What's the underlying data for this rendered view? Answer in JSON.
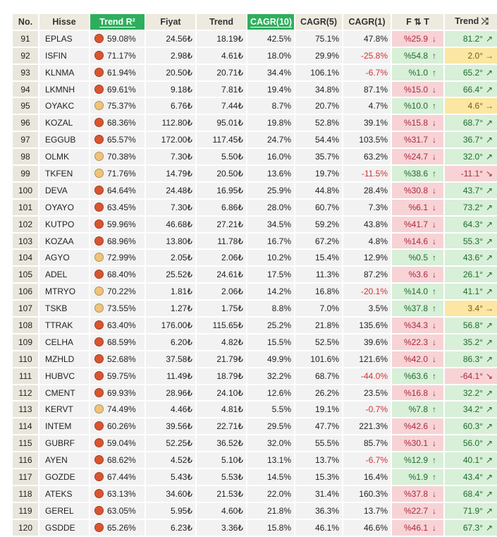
{
  "headers": {
    "no": "No.",
    "hisse": "Hisse",
    "trend_r2": "Trend R²",
    "fiyat": "Fiyat",
    "trend": "Trend",
    "cagr10": "CAGR(10)",
    "cagr5": "CAGR(5)",
    "cagr1": "CAGR(1)",
    "ft": "F ⇅ T",
    "trend_dir": "Trend ⤮"
  },
  "colors": {
    "header_bg": "#eeeadf",
    "highlight_header": "#2eae5c",
    "dot_red": "#d9552f",
    "dot_yellow": "#efc37a",
    "cell_green": "#d8efd8",
    "cell_pink": "#f7d3d6",
    "cell_yellow": "#fbe6a3",
    "negative_text": "#d43030"
  },
  "rows": [
    {
      "no": "91",
      "hisse": "EPLAS",
      "dot": "red",
      "r2": "59.08%",
      "fiyat": "24.56₺",
      "trend": "18.19₺",
      "cagr10": "42.5%",
      "cagr5": "75.1%",
      "cagr1": "47.8%",
      "cagr1_neg": false,
      "ft": "%25.9",
      "ft_arrow": "↓",
      "ft_color": "pink",
      "td": "81.2°",
      "td_arrow": "↗",
      "td_color": "green"
    },
    {
      "no": "92",
      "hisse": "ISFIN",
      "dot": "red",
      "r2": "71.17%",
      "fiyat": "2.98₺",
      "trend": "4.61₺",
      "cagr10": "18.0%",
      "cagr5": "29.9%",
      "cagr1": "-25.8%",
      "cagr1_neg": true,
      "ft": "%54.8",
      "ft_arrow": "↑",
      "ft_color": "green",
      "td": "2.0°",
      "td_arrow": "→",
      "td_color": "yel"
    },
    {
      "no": "93",
      "hisse": "KLNMA",
      "dot": "red",
      "r2": "61.94%",
      "fiyat": "20.50₺",
      "trend": "20.71₺",
      "cagr10": "34.4%",
      "cagr5": "106.1%",
      "cagr1": "-6.7%",
      "cagr1_neg": true,
      "ft": "%1.0",
      "ft_arrow": "↑",
      "ft_color": "green",
      "td": "65.2°",
      "td_arrow": "↗",
      "td_color": "green"
    },
    {
      "no": "94",
      "hisse": "LKMNH",
      "dot": "red",
      "r2": "69.61%",
      "fiyat": "9.18₺",
      "trend": "7.81₺",
      "cagr10": "19.4%",
      "cagr5": "34.8%",
      "cagr1": "87.1%",
      "cagr1_neg": false,
      "ft": "%15.0",
      "ft_arrow": "↓",
      "ft_color": "pink",
      "td": "66.4°",
      "td_arrow": "↗",
      "td_color": "green"
    },
    {
      "no": "95",
      "hisse": "OYAKC",
      "dot": "yellow",
      "r2": "75.37%",
      "fiyat": "6.76₺",
      "trend": "7.44₺",
      "cagr10": "8.7%",
      "cagr5": "20.7%",
      "cagr1": "4.7%",
      "cagr1_neg": false,
      "ft": "%10.0",
      "ft_arrow": "↑",
      "ft_color": "green",
      "td": "4.6°",
      "td_arrow": "→",
      "td_color": "yel"
    },
    {
      "no": "96",
      "hisse": "KOZAL",
      "dot": "red",
      "r2": "68.36%",
      "fiyat": "112.80₺",
      "trend": "95.01₺",
      "cagr10": "19.8%",
      "cagr5": "52.8%",
      "cagr1": "39.1%",
      "cagr1_neg": false,
      "ft": "%15.8",
      "ft_arrow": "↓",
      "ft_color": "pink",
      "td": "68.7°",
      "td_arrow": "↗",
      "td_color": "green"
    },
    {
      "no": "97",
      "hisse": "EGGUB",
      "dot": "red",
      "r2": "65.57%",
      "fiyat": "172.00₺",
      "trend": "117.45₺",
      "cagr10": "24.7%",
      "cagr5": "54.4%",
      "cagr1": "103.5%",
      "cagr1_neg": false,
      "ft": "%31.7",
      "ft_arrow": "↓",
      "ft_color": "pink",
      "td": "36.7°",
      "td_arrow": "↗",
      "td_color": "green"
    },
    {
      "no": "98",
      "hisse": "OLMK",
      "dot": "yellow",
      "r2": "70.38%",
      "fiyat": "7.30₺",
      "trend": "5.50₺",
      "cagr10": "16.0%",
      "cagr5": "35.7%",
      "cagr1": "63.2%",
      "cagr1_neg": false,
      "ft": "%24.7",
      "ft_arrow": "↓",
      "ft_color": "pink",
      "td": "32.0°",
      "td_arrow": "↗",
      "td_color": "green"
    },
    {
      "no": "99",
      "hisse": "TKFEN",
      "dot": "yellow",
      "r2": "71.76%",
      "fiyat": "14.79₺",
      "trend": "20.50₺",
      "cagr10": "13.6%",
      "cagr5": "19.7%",
      "cagr1": "-11.5%",
      "cagr1_neg": true,
      "ft": "%38.6",
      "ft_arrow": "↑",
      "ft_color": "green",
      "td": "-11.1°",
      "td_arrow": "↘",
      "td_color": "pink"
    },
    {
      "no": "100",
      "hisse": "DEVA",
      "dot": "red",
      "r2": "64.64%",
      "fiyat": "24.48₺",
      "trend": "16.95₺",
      "cagr10": "25.9%",
      "cagr5": "44.8%",
      "cagr1": "28.4%",
      "cagr1_neg": false,
      "ft": "%30.8",
      "ft_arrow": "↓",
      "ft_color": "pink",
      "td": "43.7°",
      "td_arrow": "↗",
      "td_color": "green"
    },
    {
      "no": "101",
      "hisse": "OYAYO",
      "dot": "red",
      "r2": "63.45%",
      "fiyat": "7.30₺",
      "trend": "6.86₺",
      "cagr10": "28.0%",
      "cagr5": "60.7%",
      "cagr1": "7.3%",
      "cagr1_neg": false,
      "ft": "%6.1",
      "ft_arrow": "↓",
      "ft_color": "pink",
      "td": "73.2°",
      "td_arrow": "↗",
      "td_color": "green"
    },
    {
      "no": "102",
      "hisse": "KUTPO",
      "dot": "red",
      "r2": "59.96%",
      "fiyat": "46.68₺",
      "trend": "27.21₺",
      "cagr10": "34.5%",
      "cagr5": "59.2%",
      "cagr1": "43.8%",
      "cagr1_neg": false,
      "ft": "%41.7",
      "ft_arrow": "↓",
      "ft_color": "pink",
      "td": "64.3°",
      "td_arrow": "↗",
      "td_color": "green"
    },
    {
      "no": "103",
      "hisse": "KOZAA",
      "dot": "red",
      "r2": "68.96%",
      "fiyat": "13.80₺",
      "trend": "11.78₺",
      "cagr10": "16.7%",
      "cagr5": "67.2%",
      "cagr1": "4.8%",
      "cagr1_neg": false,
      "ft": "%14.6",
      "ft_arrow": "↓",
      "ft_color": "pink",
      "td": "55.3°",
      "td_arrow": "↗",
      "td_color": "green"
    },
    {
      "no": "104",
      "hisse": "AGYO",
      "dot": "yellow",
      "r2": "72.99%",
      "fiyat": "2.05₺",
      "trend": "2.06₺",
      "cagr10": "10.2%",
      "cagr5": "15.4%",
      "cagr1": "12.9%",
      "cagr1_neg": false,
      "ft": "%0.5",
      "ft_arrow": "↑",
      "ft_color": "green",
      "td": "43.6°",
      "td_arrow": "↗",
      "td_color": "green"
    },
    {
      "no": "105",
      "hisse": "ADEL",
      "dot": "red",
      "r2": "68.40%",
      "fiyat": "25.52₺",
      "trend": "24.61₺",
      "cagr10": "17.5%",
      "cagr5": "11.3%",
      "cagr1": "87.2%",
      "cagr1_neg": false,
      "ft": "%3.6",
      "ft_arrow": "↓",
      "ft_color": "pink",
      "td": "26.1°",
      "td_arrow": "↗",
      "td_color": "green"
    },
    {
      "no": "106",
      "hisse": "MTRYO",
      "dot": "yellow",
      "r2": "70.22%",
      "fiyat": "1.81₺",
      "trend": "2.06₺",
      "cagr10": "14.2%",
      "cagr5": "16.8%",
      "cagr1": "-20.1%",
      "cagr1_neg": true,
      "ft": "%14.0",
      "ft_arrow": "↑",
      "ft_color": "green",
      "td": "41.1°",
      "td_arrow": "↗",
      "td_color": "green"
    },
    {
      "no": "107",
      "hisse": "TSKB",
      "dot": "yellow",
      "r2": "73.55%",
      "fiyat": "1.27₺",
      "trend": "1.75₺",
      "cagr10": "8.8%",
      "cagr5": "7.0%",
      "cagr1": "3.5%",
      "cagr1_neg": false,
      "ft": "%37.8",
      "ft_arrow": "↑",
      "ft_color": "green",
      "td": "3.4°",
      "td_arrow": "→",
      "td_color": "yel"
    },
    {
      "no": "108",
      "hisse": "TTRAK",
      "dot": "red",
      "r2": "63.40%",
      "fiyat": "176.00₺",
      "trend": "115.65₺",
      "cagr10": "25.2%",
      "cagr5": "21.8%",
      "cagr1": "135.6%",
      "cagr1_neg": false,
      "ft": "%34.3",
      "ft_arrow": "↓",
      "ft_color": "pink",
      "td": "56.8°",
      "td_arrow": "↗",
      "td_color": "green"
    },
    {
      "no": "109",
      "hisse": "CELHA",
      "dot": "red",
      "r2": "68.59%",
      "fiyat": "6.20₺",
      "trend": "4.82₺",
      "cagr10": "15.5%",
      "cagr5": "52.5%",
      "cagr1": "39.6%",
      "cagr1_neg": false,
      "ft": "%22.3",
      "ft_arrow": "↓",
      "ft_color": "pink",
      "td": "35.2°",
      "td_arrow": "↗",
      "td_color": "green"
    },
    {
      "no": "110",
      "hisse": "MZHLD",
      "dot": "red",
      "r2": "52.68%",
      "fiyat": "37.58₺",
      "trend": "21.79₺",
      "cagr10": "49.9%",
      "cagr5": "101.6%",
      "cagr1": "121.6%",
      "cagr1_neg": false,
      "ft": "%42.0",
      "ft_arrow": "↓",
      "ft_color": "pink",
      "td": "86.3°",
      "td_arrow": "↗",
      "td_color": "green"
    },
    {
      "no": "111",
      "hisse": "HUBVC",
      "dot": "red",
      "r2": "59.75%",
      "fiyat": "11.49₺",
      "trend": "18.79₺",
      "cagr10": "32.2%",
      "cagr5": "68.7%",
      "cagr1": "-44.0%",
      "cagr1_neg": true,
      "ft": "%63.6",
      "ft_arrow": "↑",
      "ft_color": "green",
      "td": "-64.1°",
      "td_arrow": "↘",
      "td_color": "pink"
    },
    {
      "no": "112",
      "hisse": "CMENT",
      "dot": "red",
      "r2": "69.93%",
      "fiyat": "28.96₺",
      "trend": "24.10₺",
      "cagr10": "12.6%",
      "cagr5": "26.2%",
      "cagr1": "23.5%",
      "cagr1_neg": false,
      "ft": "%16.8",
      "ft_arrow": "↓",
      "ft_color": "pink",
      "td": "32.2°",
      "td_arrow": "↗",
      "td_color": "green"
    },
    {
      "no": "113",
      "hisse": "KERVT",
      "dot": "yellow",
      "r2": "74.49%",
      "fiyat": "4.46₺",
      "trend": "4.81₺",
      "cagr10": "5.5%",
      "cagr5": "19.1%",
      "cagr1": "-0.7%",
      "cagr1_neg": true,
      "ft": "%7.8",
      "ft_arrow": "↑",
      "ft_color": "green",
      "td": "34.2°",
      "td_arrow": "↗",
      "td_color": "green"
    },
    {
      "no": "114",
      "hisse": "INTEM",
      "dot": "red",
      "r2": "60.26%",
      "fiyat": "39.56₺",
      "trend": "22.71₺",
      "cagr10": "29.5%",
      "cagr5": "47.7%",
      "cagr1": "221.3%",
      "cagr1_neg": false,
      "ft": "%42.6",
      "ft_arrow": "↓",
      "ft_color": "pink",
      "td": "60.3°",
      "td_arrow": "↗",
      "td_color": "green"
    },
    {
      "no": "115",
      "hisse": "GUBRF",
      "dot": "red",
      "r2": "59.04%",
      "fiyat": "52.25₺",
      "trend": "36.52₺",
      "cagr10": "32.0%",
      "cagr5": "55.5%",
      "cagr1": "85.7%",
      "cagr1_neg": false,
      "ft": "%30.1",
      "ft_arrow": "↓",
      "ft_color": "pink",
      "td": "56.0°",
      "td_arrow": "↗",
      "td_color": "green"
    },
    {
      "no": "116",
      "hisse": "AYEN",
      "dot": "red",
      "r2": "68.62%",
      "fiyat": "4.52₺",
      "trend": "5.10₺",
      "cagr10": "13.1%",
      "cagr5": "13.7%",
      "cagr1": "-6.7%",
      "cagr1_neg": true,
      "ft": "%12.9",
      "ft_arrow": "↑",
      "ft_color": "green",
      "td": "40.1°",
      "td_arrow": "↗",
      "td_color": "green"
    },
    {
      "no": "117",
      "hisse": "GOZDE",
      "dot": "red",
      "r2": "67.44%",
      "fiyat": "5.43₺",
      "trend": "5.53₺",
      "cagr10": "14.5%",
      "cagr5": "15.3%",
      "cagr1": "16.4%",
      "cagr1_neg": false,
      "ft": "%1.9",
      "ft_arrow": "↑",
      "ft_color": "green",
      "td": "43.4°",
      "td_arrow": "↗",
      "td_color": "green"
    },
    {
      "no": "118",
      "hisse": "ATEKS",
      "dot": "red",
      "r2": "63.13%",
      "fiyat": "34.60₺",
      "trend": "21.53₺",
      "cagr10": "22.0%",
      "cagr5": "31.4%",
      "cagr1": "160.3%",
      "cagr1_neg": false,
      "ft": "%37.8",
      "ft_arrow": "↓",
      "ft_color": "pink",
      "td": "68.4°",
      "td_arrow": "↗",
      "td_color": "green"
    },
    {
      "no": "119",
      "hisse": "GEREL",
      "dot": "red",
      "r2": "63.05%",
      "fiyat": "5.95₺",
      "trend": "4.60₺",
      "cagr10": "21.8%",
      "cagr5": "36.3%",
      "cagr1": "13.7%",
      "cagr1_neg": false,
      "ft": "%22.7",
      "ft_arrow": "↓",
      "ft_color": "pink",
      "td": "71.9°",
      "td_arrow": "↗",
      "td_color": "green"
    },
    {
      "no": "120",
      "hisse": "GSDDE",
      "dot": "red",
      "r2": "65.26%",
      "fiyat": "6.23₺",
      "trend": "3.36₺",
      "cagr10": "15.8%",
      "cagr5": "46.1%",
      "cagr1": "46.6%",
      "cagr1_neg": false,
      "ft": "%46.1",
      "ft_arrow": "↓",
      "ft_color": "pink",
      "td": "67.3°",
      "td_arrow": "↗",
      "td_color": "green"
    }
  ]
}
